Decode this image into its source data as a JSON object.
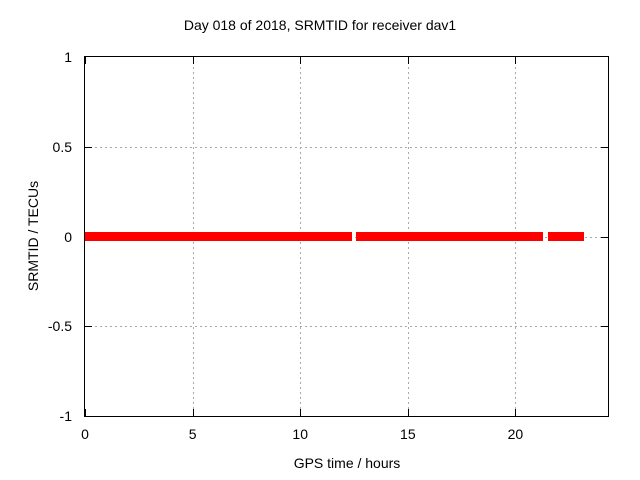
{
  "title": "Day 018 of 2018, SRMTID for receiver dav1",
  "chart_data": {
    "type": "line",
    "title": "Day 018 of 2018, SRMTID for receiver dav1",
    "xlabel": "GPS time / hours",
    "ylabel": "SRMTID / TECUs",
    "xlim": [
      0,
      24.3
    ],
    "ylim": [
      -1,
      1
    ],
    "x_ticks": [
      0,
      5,
      10,
      15,
      20
    ],
    "x_tick_labels": [
      "0",
      "5",
      "10",
      "15",
      "20"
    ],
    "y_ticks": [
      1,
      0.5,
      0,
      -0.5,
      -1
    ],
    "y_tick_labels": [
      "1",
      "0.5",
      "0",
      "-0.5",
      "-1"
    ],
    "grid": true,
    "legend": "none",
    "series": [
      {
        "name": "SRMTID",
        "y_value": 0,
        "color": "#ff0000",
        "segments_hours": [
          [
            0.0,
            12.4
          ],
          [
            12.6,
            21.3
          ],
          [
            21.5,
            23.2
          ]
        ]
      }
    ],
    "colors": {
      "line": "#ff0000",
      "grid": "#a8a8a8",
      "border": "#000000",
      "background": "#ffffff",
      "text": "#000000"
    }
  }
}
